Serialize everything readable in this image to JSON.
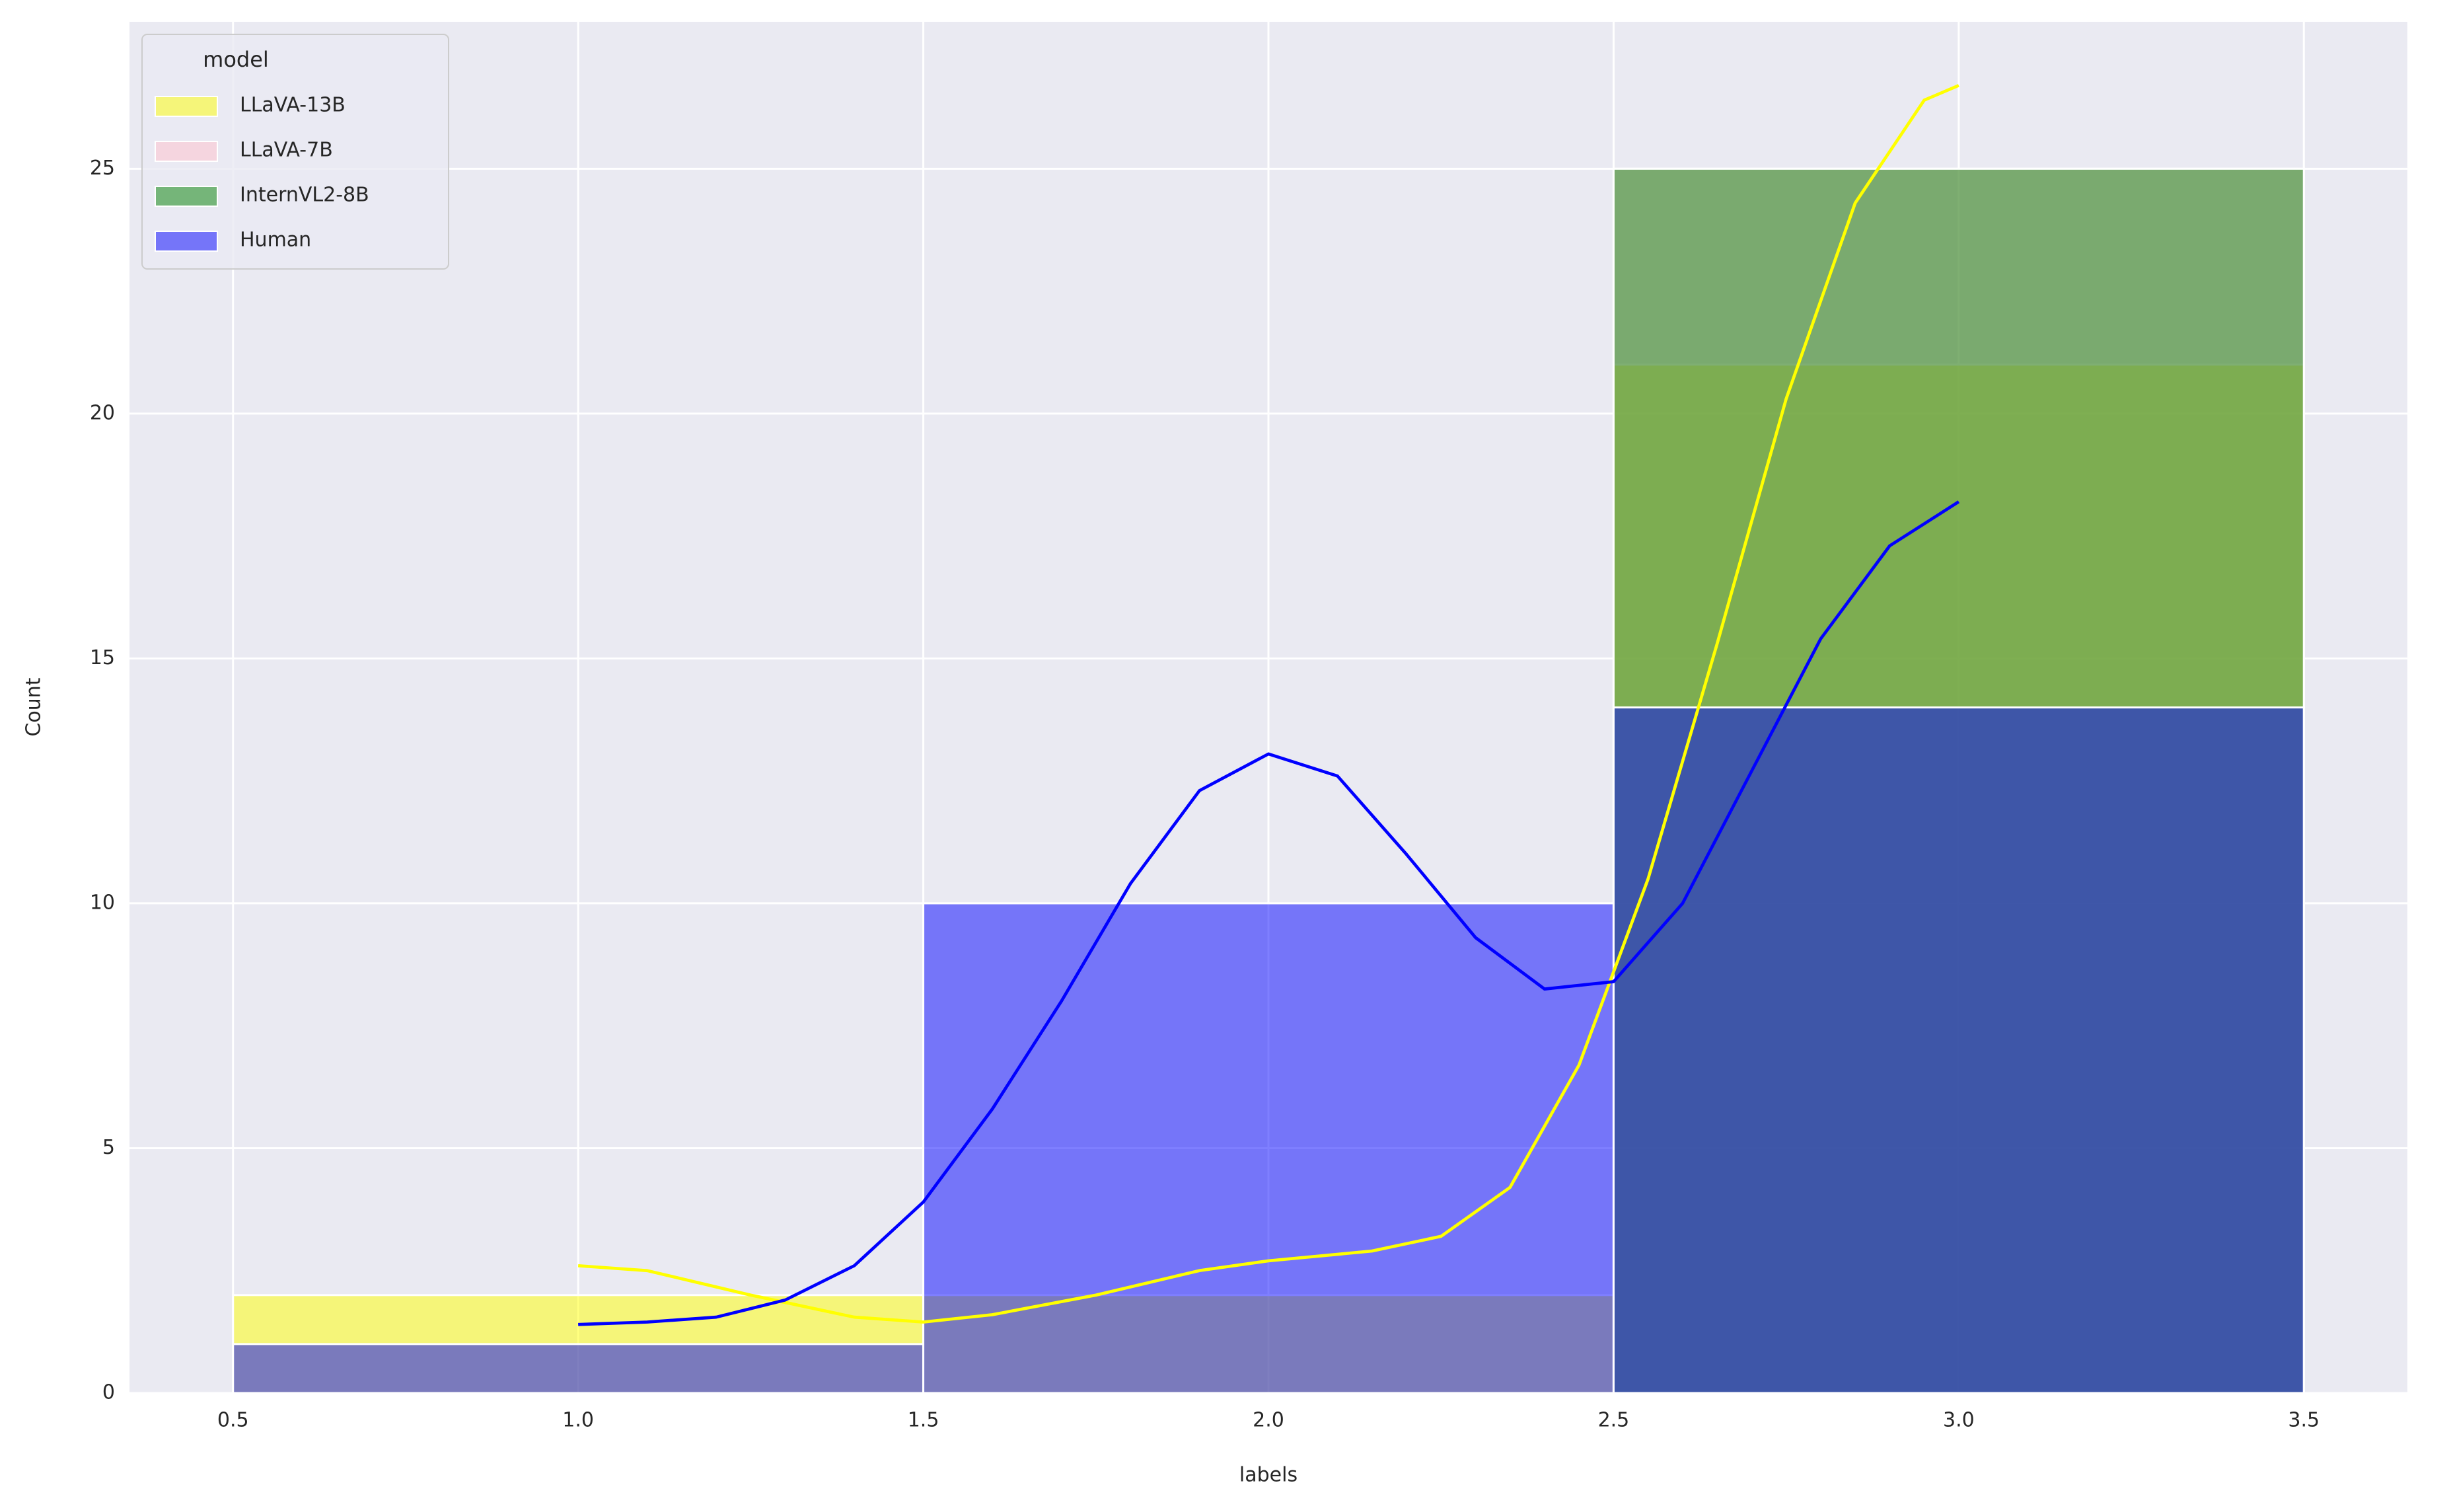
{
  "chart_data": {
    "type": "histogram",
    "x_label": "labels",
    "y_label": "Count",
    "bins": [
      0.5,
      1.5,
      2.5,
      3.5
    ],
    "legend_title": "model",
    "legend_position": "upper left",
    "grid": true,
    "alpha": 0.5,
    "xlim": [
      0.35,
      3.65
    ],
    "ylim": [
      0,
      28
    ],
    "xticks": [
      0.5,
      {
        "value": 1,
        "label": "1.0"
      },
      1.5,
      {
        "value": 2,
        "label": "2.0"
      },
      2.5,
      {
        "value": 3,
        "label": "3.0"
      },
      3.5
    ],
    "yticks": [
      0,
      5,
      10,
      15,
      20,
      25
    ],
    "series": [
      {
        "name": "LLaVA-13B",
        "color": "#ffff00",
        "values": [
          2,
          2,
          21
        ],
        "kde_x": [
          1.0,
          1.1,
          1.25,
          1.4,
          1.5,
          1.6,
          1.75,
          1.9,
          2.0,
          2.15,
          2.25,
          2.35,
          2.45,
          2.55,
          2.65,
          2.75,
          2.85,
          2.95,
          3.0
        ],
        "kde": [
          2.6,
          2.5,
          2.0,
          1.55,
          1.45,
          1.6,
          2.0,
          2.5,
          2.7,
          2.9,
          3.2,
          4.2,
          6.7,
          10.5,
          15.3,
          20.3,
          24.3,
          26.4,
          26.7
        ]
      },
      {
        "name": "LLaVA-7B",
        "color": "#ffc0cb",
        "values": [
          0,
          0,
          25
        ]
      },
      {
        "name": "InternVL2-8B",
        "color": "#008000",
        "values": [
          0,
          0,
          25
        ]
      },
      {
        "name": "Human",
        "color": "#0000ff",
        "values": [
          1,
          10,
          14
        ],
        "kde_x": [
          1.0,
          1.1,
          1.2,
          1.3,
          1.4,
          1.5,
          1.6,
          1.7,
          1.8,
          1.9,
          2.0,
          2.1,
          2.2,
          2.3,
          2.4,
          2.5,
          2.6,
          2.7,
          2.8,
          2.9,
          3.0
        ],
        "kde": [
          1.4,
          1.45,
          1.55,
          1.9,
          2.6,
          3.9,
          5.8,
          8.0,
          10.4,
          12.3,
          13.05,
          12.6,
          11.0,
          9.3,
          8.25,
          8.4,
          10.0,
          12.7,
          15.4,
          17.3,
          18.2
        ]
      }
    ]
  }
}
